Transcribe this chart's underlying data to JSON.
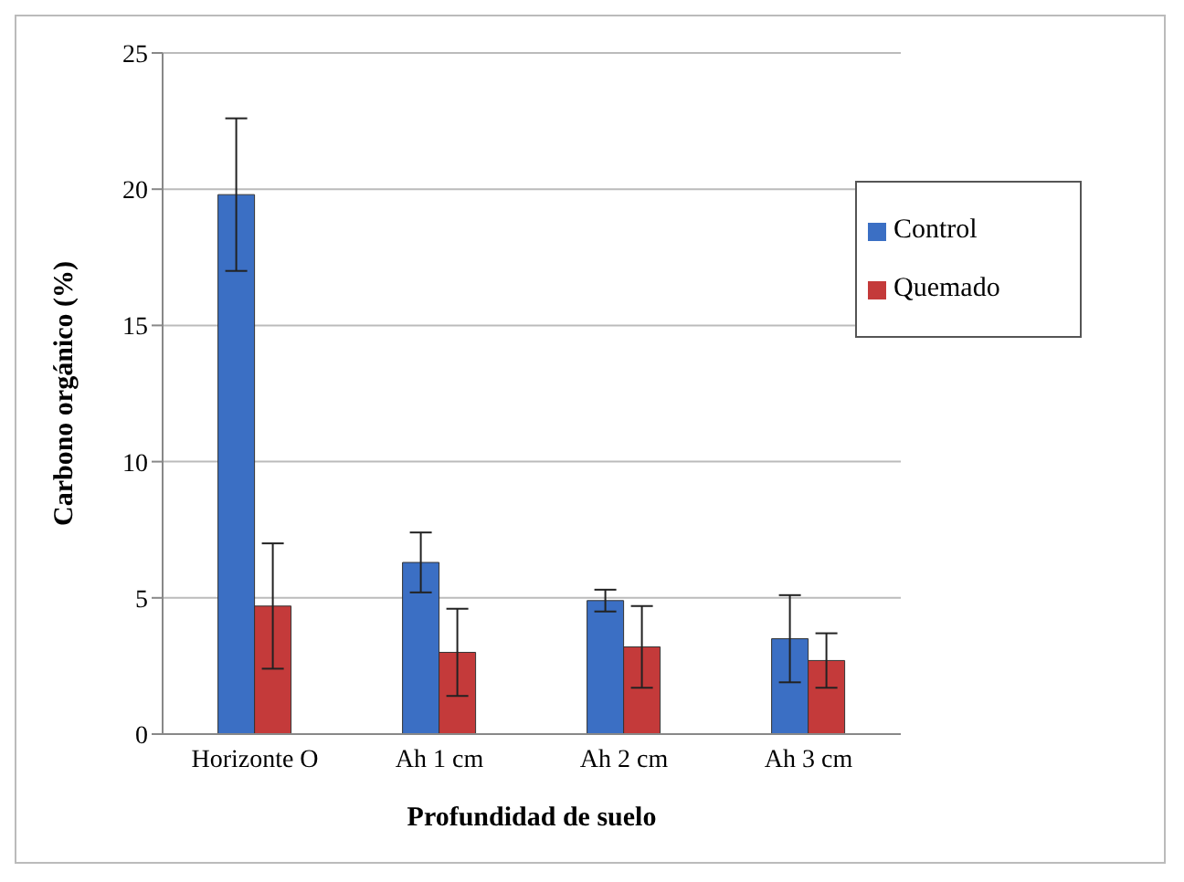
{
  "chart_data": {
    "type": "bar",
    "xlabel": "Profundidad de suelo",
    "ylabel": "Carbono orgánico (%)",
    "categories": [
      "Horizonte O",
      "Ah 1 cm",
      "Ah 2 cm",
      "Ah 3 cm"
    ],
    "series": [
      {
        "name": "Control",
        "color": "#3b6fc4",
        "values": [
          19.8,
          6.3,
          4.9,
          3.5
        ],
        "errors": [
          2.8,
          1.1,
          0.4,
          1.6
        ]
      },
      {
        "name": "Quemado",
        "color": "#c43a3a",
        "values": [
          4.7,
          3.0,
          3.2,
          2.7
        ],
        "errors": [
          2.3,
          1.6,
          1.5,
          1.0
        ]
      }
    ],
    "ylim": [
      0,
      25
    ],
    "yticks": [
      0,
      5,
      10,
      15,
      20,
      25
    ],
    "grid": "y",
    "legend": "top right"
  }
}
